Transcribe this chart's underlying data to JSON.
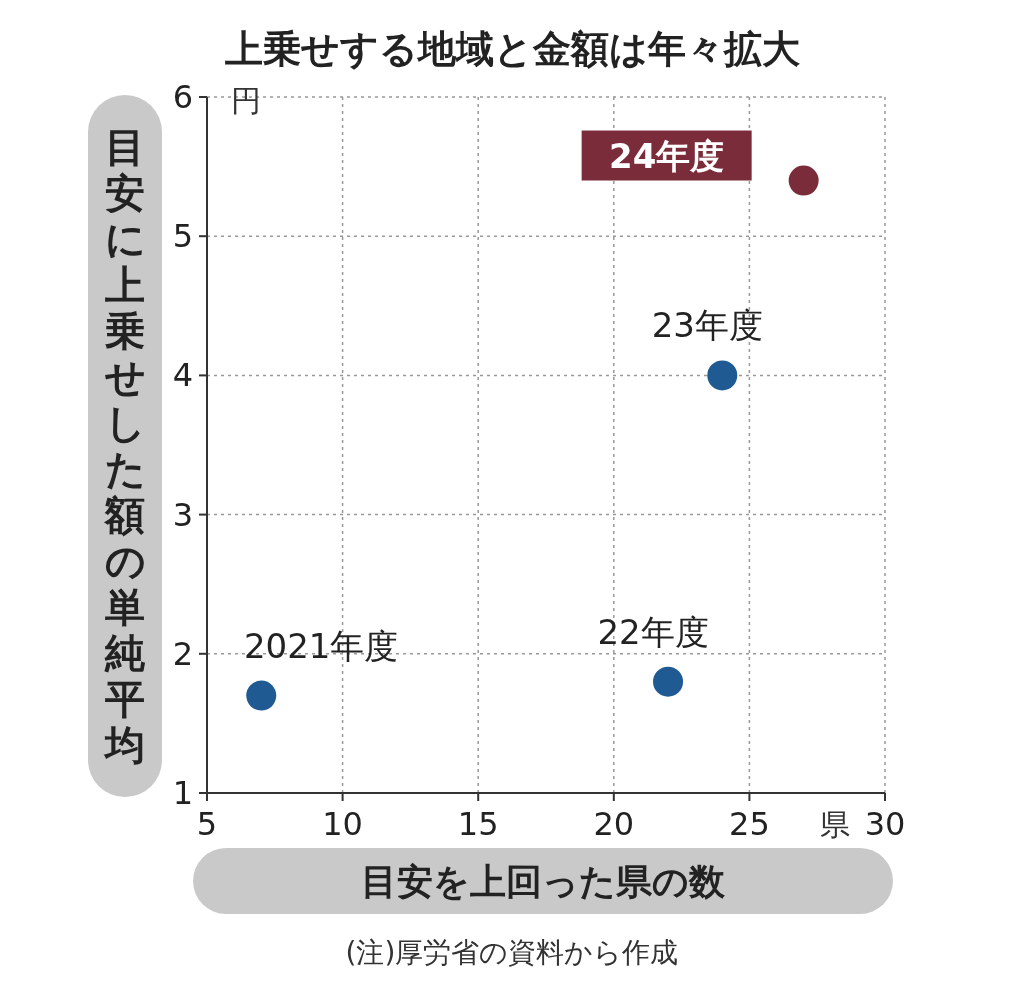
{
  "chart_data": {
    "type": "scatter",
    "title": "上乗せする地域と金額は年々拡大",
    "xlabel": "目安を上回った県の数",
    "ylabel": "目安に上乗せした額の単純平均",
    "series": [
      {
        "name": "2021年度",
        "color": "#1f5b92",
        "x": [
          7
        ],
        "values": [
          1.7
        ]
      },
      {
        "name": "22年度",
        "color": "#1f5b92",
        "x": [
          22
        ],
        "values": [
          1.8
        ]
      },
      {
        "name": "23年度",
        "color": "#1f5b92",
        "x": [
          24
        ],
        "values": [
          4.0
        ]
      },
      {
        "name": "24年度",
        "color": "#7b2c3b",
        "x": [
          27
        ],
        "values": [
          5.4
        ]
      }
    ],
    "xlim": [
      5,
      30
    ],
    "xticks": [
      5,
      10,
      15,
      20,
      25,
      30
    ],
    "ylim": [
      1,
      6
    ],
    "yticks": [
      1,
      2,
      3,
      4,
      5,
      6
    ],
    "grid": true,
    "legend": false,
    "marker": "circle",
    "annotations": [
      "円",
      "県",
      "(注)厚労省の資料から作成"
    ]
  }
}
